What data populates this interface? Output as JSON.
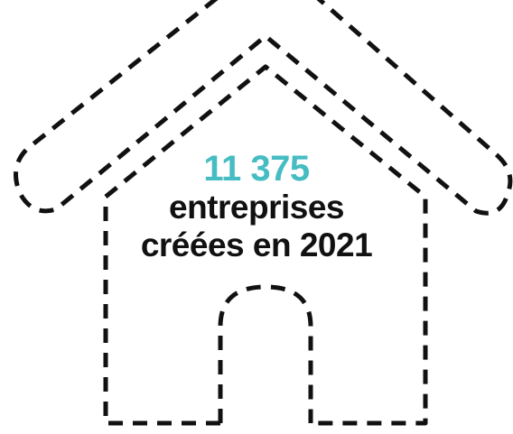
{
  "stat": {
    "number": "11 375",
    "line1": "entreprises",
    "line2": "créées en 2021"
  },
  "colors": {
    "accent": "#46bcc3",
    "text": "#111111",
    "stroke": "#111111",
    "background": "#ffffff"
  },
  "icon": "dashed-house-icon"
}
